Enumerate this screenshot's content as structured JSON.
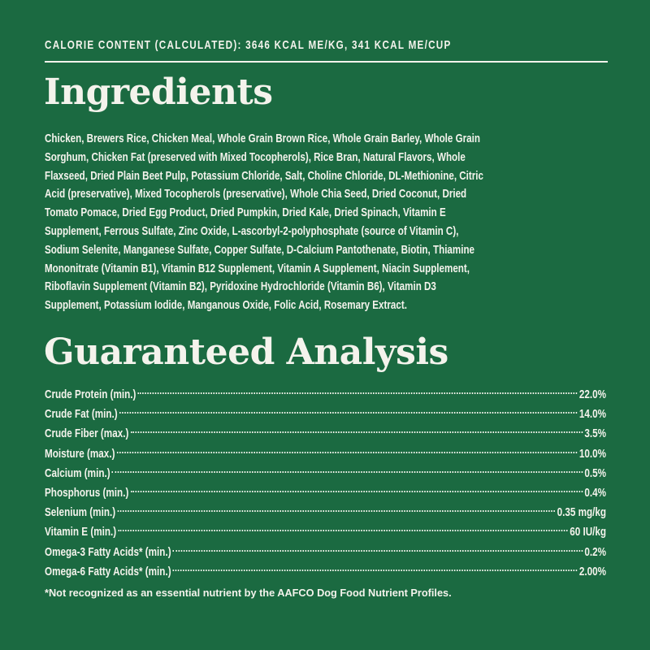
{
  "colors": {
    "background": "#1b6a41",
    "text": "#f4f3ec"
  },
  "calorie_content": "CALORIE CONTENT (CALCULATED): 3646 KCAL ME/KG, 341 KCAL ME/CUP",
  "ingredients": {
    "title": "Ingredients",
    "lines": [
      "Chicken, Brewers Rice, Chicken Meal, Whole Grain Brown Rice, Whole Grain Barley, Whole Grain",
      "Sorghum, Chicken Fat (preserved with Mixed Tocopherols), Rice Bran, Natural Flavors, Whole",
      "Flaxseed, Dried Plain Beet Pulp, Potassium Chloride, Salt, Choline Chloride, DL-Methionine, Citric",
      "Acid (preservative), Mixed Tocopherols (preservative), Whole Chia Seed, Dried Coconut, Dried",
      "Tomato Pomace, Dried Egg Product, Dried Pumpkin, Dried Kale, Dried Spinach, Vitamin E",
      "Supplement, Ferrous Sulfate, Zinc Oxide, L-ascorbyl-2-polyphosphate (source of Vitamin C),",
      "Sodium Selenite, Manganese Sulfate, Copper Sulfate, D-Calcium Pantothenate, Biotin, Thiamine",
      "Mononitrate (Vitamin B1), Vitamin B12 Supplement, Vitamin A Supplement, Niacin Supplement,",
      "Riboflavin Supplement (Vitamin B2), Pyridoxine Hydrochloride (Vitamin B6), Vitamin D3",
      "Supplement, Potassium Iodide, Manganous Oxide, Folic Acid, Rosemary Extract."
    ]
  },
  "analysis": {
    "title": "Guaranteed Analysis",
    "rows": [
      {
        "label": "Crude Protein (min.)",
        "value": "22.0%"
      },
      {
        "label": "Crude Fat (min.)",
        "value": "14.0%"
      },
      {
        "label": "Crude Fiber (max.)",
        "value": "3.5%"
      },
      {
        "label": "Moisture (max.)",
        "value": "10.0%"
      },
      {
        "label": "Calcium (min.)",
        "value": "0.5%"
      },
      {
        "label": "Phosphorus (min.)",
        "value": "0.4%"
      },
      {
        "label": "Selenium (min.)",
        "value": "0.35 mg/kg"
      },
      {
        "label": "Vitamin E (min.)",
        "value": "60 IU/kg"
      },
      {
        "label": "Omega-3 Fatty Acids* (min.)",
        "value": "0.2%"
      },
      {
        "label": "Omega-6 Fatty Acids* (min.)",
        "value": "2.00%"
      }
    ],
    "footnote": "*Not recognized as an essential nutrient by the AAFCO Dog Food Nutrient Profiles."
  }
}
